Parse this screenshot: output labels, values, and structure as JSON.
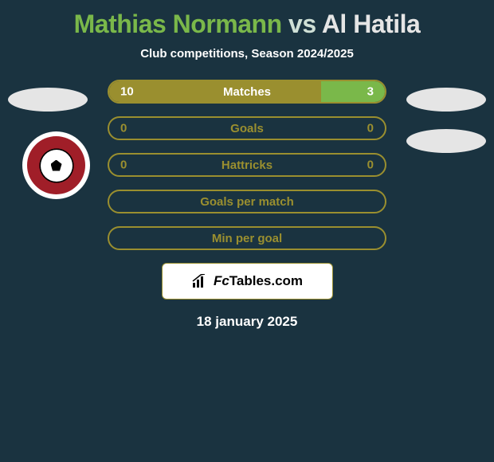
{
  "colors": {
    "background": "#1a3340",
    "white": "#ffffff",
    "light_gray": "#e5e5e5",
    "olive": "#9a8f2f",
    "olive_dark": "#7f7727",
    "green_accent": "#7ab84a",
    "text_dim": "#cfe0d6",
    "black": "#000000",
    "club_red": "#a01e28"
  },
  "title": {
    "player1": {
      "name": "Mathias Normann",
      "color": "#7ab84a"
    },
    "vs": {
      "text": "vs",
      "color": "#cfe0d6"
    },
    "player2": {
      "name": "Al Hatila",
      "color": "#e5e5e5"
    }
  },
  "subtitle": "Club competitions, Season 2024/2025",
  "stats": [
    {
      "label": "Matches",
      "left_val": "10",
      "right_val": "3",
      "left_pct": 77,
      "right_pct": 23,
      "left_color": "#9a8f2f",
      "right_color": "#7ab84a",
      "border_color": "#9a8f2f",
      "text_color": "#ffffff"
    },
    {
      "label": "Goals",
      "left_val": "0",
      "right_val": "0",
      "left_pct": 50,
      "right_pct": 50,
      "left_color": "transparent",
      "right_color": "transparent",
      "border_color": "#9a8f2f",
      "text_color": "#9a8f2f"
    },
    {
      "label": "Hattricks",
      "left_val": "0",
      "right_val": "0",
      "left_pct": 50,
      "right_pct": 50,
      "left_color": "transparent",
      "right_color": "transparent",
      "border_color": "#9a8f2f",
      "text_color": "#9a8f2f"
    }
  ],
  "simple_rows": [
    {
      "label": "Goals per match",
      "border_color": "#9a8f2f",
      "text_color": "#9a8f2f"
    },
    {
      "label": "Min per goal",
      "border_color": "#9a8f2f",
      "text_color": "#9a8f2f"
    }
  ],
  "logo": {
    "brand_fc": "Fc",
    "brand_rest": "Tables.com",
    "bg": "#ffffff",
    "border": "#9a8f2f",
    "text_color": "#000000"
  },
  "date": "18 january 2025",
  "side_ellipses": {
    "left1_color": "#e5e5e5",
    "right1_color": "#e5e5e5",
    "right2_color": "#e5e5e5"
  }
}
